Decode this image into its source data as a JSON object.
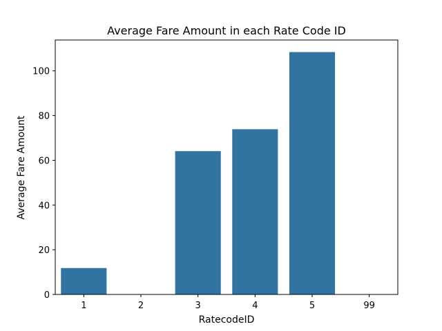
{
  "chart_data": {
    "type": "bar",
    "title": "Average Fare Amount in each Rate Code ID",
    "xlabel": "RatecodeID",
    "ylabel": "Average Fare Amount",
    "categories": [
      "1",
      "2",
      "3",
      "4",
      "5",
      "99"
    ],
    "values": [
      11.8,
      0,
      64.1,
      73.9,
      108.4,
      0
    ],
    "ylim": [
      0,
      113.8
    ],
    "yticks": [
      0,
      20,
      40,
      60,
      80,
      100
    ],
    "grid": false,
    "colors": {
      "bar": "#3274a1",
      "axis": "#000000",
      "background": "#ffffff"
    }
  }
}
